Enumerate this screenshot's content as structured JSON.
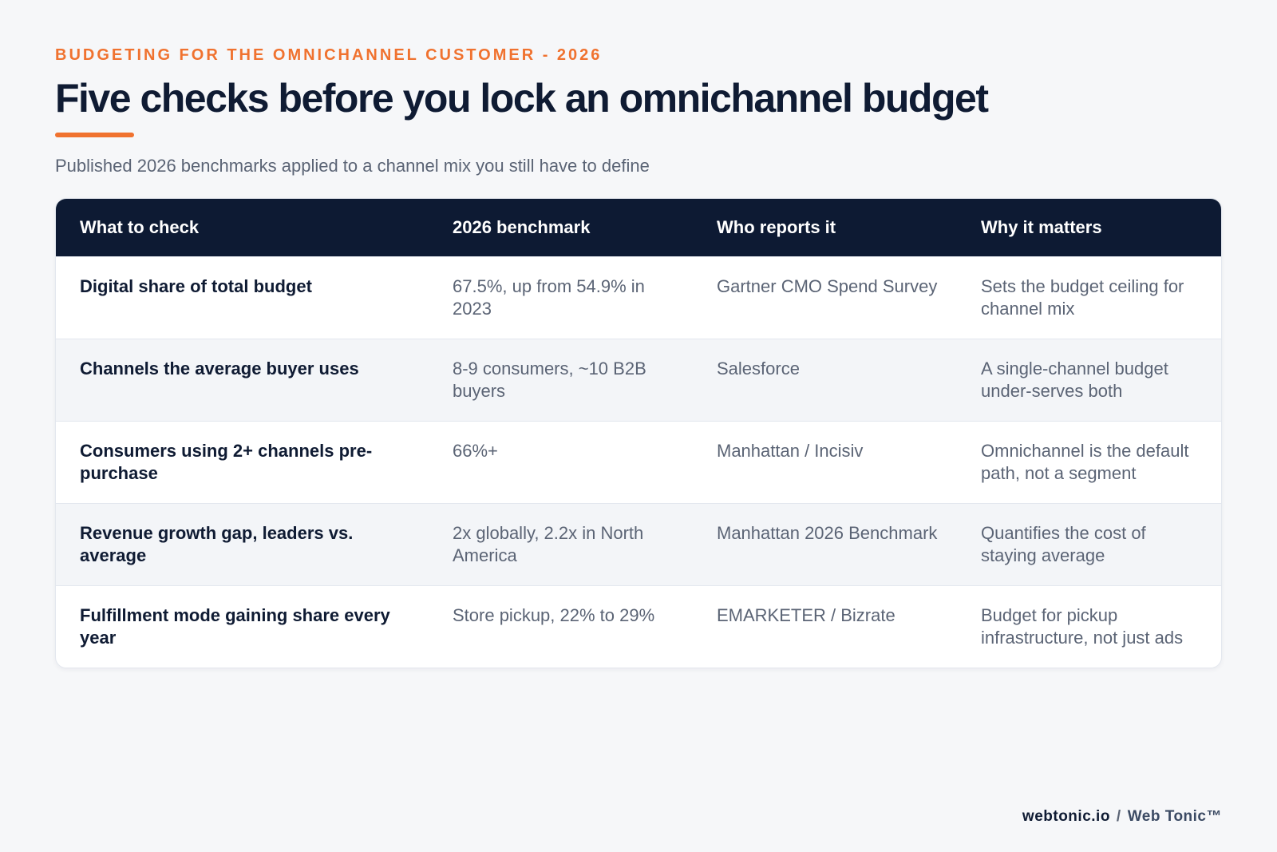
{
  "eyebrow": "BUDGETING FOR THE OMNICHANNEL CUSTOMER - 2026",
  "title": "Five checks before you lock an omnichannel budget",
  "subtitle": "Published 2026 benchmarks applied to a channel mix you still have to define",
  "table": {
    "headers": [
      "What to check",
      "2026 benchmark",
      "Who reports it",
      "Why it matters"
    ],
    "rows": [
      {
        "check": "Digital share of total budget",
        "benchmark": "67.5%, up from 54.9% in 2023",
        "source": "Gartner CMO Spend Survey",
        "why": "Sets the budget ceiling for channel mix"
      },
      {
        "check": "Channels the average buyer uses",
        "benchmark": "8-9 consumers, ~10 B2B buyers",
        "source": "Salesforce",
        "why": "A single-channel budget under-serves both"
      },
      {
        "check": "Consumers using 2+ channels pre-purchase",
        "benchmark": "66%+",
        "source": "Manhattan / Incisiv",
        "why": "Omnichannel is the default path, not a segment"
      },
      {
        "check": "Revenue growth gap, leaders vs. average",
        "benchmark": "2x globally, 2.2x in North America",
        "source": "Manhattan 2026 Benchmark",
        "why": "Quantifies the cost of staying average"
      },
      {
        "check": "Fulfillment mode gaining share every year",
        "benchmark": "Store pickup, 22% to 29%",
        "source": "EMARKETER / Bizrate",
        "why": "Budget for pickup infrastructure, not just ads"
      }
    ]
  },
  "footer": {
    "site": "webtonic.io",
    "separator": "/",
    "brand": "Web Tonic™"
  },
  "colors": {
    "accent": "#f0722f",
    "header_bg": "#0d1a33",
    "text_dark": "#0f1b33",
    "text_muted": "#5b6475",
    "page_bg": "#f6f7f9",
    "alt_row_bg": "#f3f5f8"
  }
}
